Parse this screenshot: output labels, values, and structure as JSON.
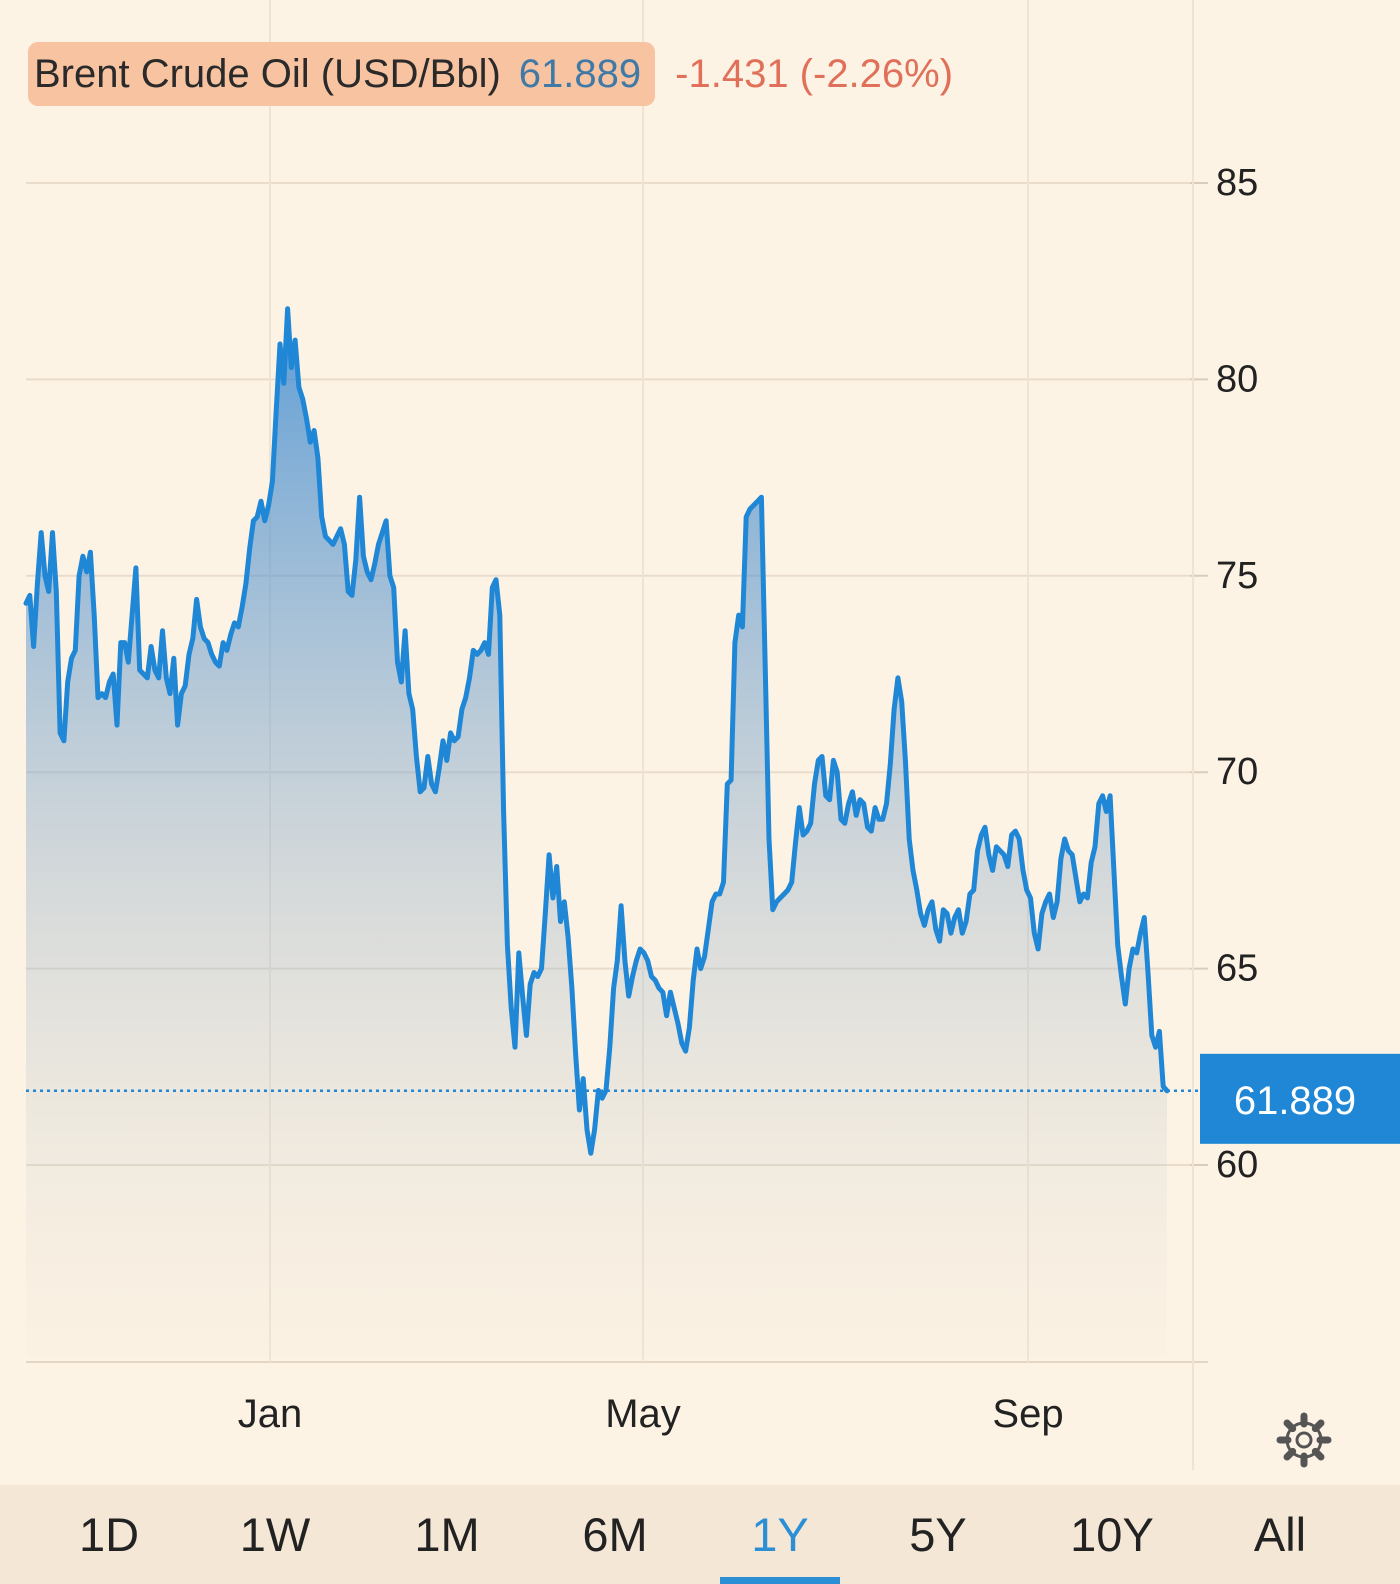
{
  "header": {
    "instrument": "Brent Crude Oil (USD/Bbl)",
    "price": "61.889",
    "change": "-1.431 (-2.26%)"
  },
  "tabs": [
    {
      "label": "1D",
      "active": false
    },
    {
      "label": "1W",
      "active": false
    },
    {
      "label": "1M",
      "active": false
    },
    {
      "label": "6M",
      "active": false
    },
    {
      "label": "1Y",
      "active": true
    },
    {
      "label": "5Y",
      "active": false
    },
    {
      "label": "10Y",
      "active": false
    },
    {
      "label": "All",
      "active": false
    }
  ],
  "icons": {
    "settings": "gear-icon"
  },
  "colors": {
    "background": "#fdf3e4",
    "line": "#1f87d6",
    "price_text": "#3f79a6",
    "change_negative": "#e0705a",
    "highlight": "#f8c3a0",
    "active_tab": "#2b8fd6"
  },
  "chart_data": {
    "type": "area",
    "x_tick_labels": [
      "Jan",
      "May",
      "Sep"
    ],
    "y_ticks": [
      60,
      65,
      70,
      75,
      80,
      85
    ],
    "ylim": [
      55,
      88
    ],
    "grid": true,
    "last_value_label": "61.889",
    "series": [
      {
        "values": [
          74.3,
          74.5,
          73.2,
          74.8,
          76.1,
          75.0,
          74.6,
          76.1,
          74.6,
          71.0,
          70.8,
          72.3,
          72.9,
          73.1,
          75.0,
          75.5,
          75.1,
          75.6,
          74.0,
          71.9,
          72.0,
          71.9,
          72.3,
          72.5,
          71.2,
          73.3,
          73.3,
          72.8,
          74.0,
          75.2,
          72.6,
          72.5,
          72.4,
          73.2,
          72.6,
          72.4,
          73.6,
          72.4,
          72.0,
          72.9,
          71.2,
          72.0,
          72.2,
          73.0,
          73.4,
          74.4,
          73.7,
          73.4,
          73.3,
          73.0,
          72.8,
          72.7,
          73.3,
          73.1,
          73.5,
          73.8,
          73.7,
          74.2,
          74.8,
          75.7,
          76.4,
          76.5,
          76.9,
          76.4,
          76.8,
          77.4,
          79.2,
          80.9,
          79.9,
          81.8,
          80.3,
          81.0,
          79.8,
          79.5,
          79.0,
          78.4,
          78.7,
          78.0,
          76.5,
          76.0,
          75.9,
          75.8,
          76.0,
          76.2,
          75.8,
          74.6,
          74.5,
          75.4,
          77.0,
          75.5,
          75.1,
          74.9,
          75.3,
          75.8,
          76.1,
          76.4,
          75.0,
          74.7,
          72.8,
          72.3,
          73.6,
          72.0,
          71.6,
          70.4,
          69.5,
          69.6,
          70.4,
          69.7,
          69.5,
          70.1,
          70.8,
          70.3,
          71.0,
          70.8,
          70.9,
          71.6,
          71.9,
          72.4,
          73.1,
          73.0,
          73.1,
          73.3,
          73.0,
          74.7,
          74.9,
          74.0,
          69.0,
          65.6,
          64.0,
          63.0,
          65.4,
          64.3,
          63.3,
          64.6,
          64.9,
          64.8,
          65.0,
          66.4,
          67.9,
          66.8,
          67.6,
          66.2,
          66.7,
          65.8,
          64.5,
          62.8,
          61.4,
          62.2,
          60.9,
          60.3,
          60.9,
          61.9,
          61.7,
          61.9,
          63.0,
          64.5,
          65.2,
          66.6,
          65.2,
          64.3,
          64.8,
          65.2,
          65.5,
          65.4,
          65.2,
          64.8,
          64.7,
          64.5,
          64.4,
          63.8,
          64.4,
          64.0,
          63.6,
          63.1,
          62.9,
          63.5,
          64.7,
          65.5,
          65.0,
          65.3,
          66.0,
          66.7,
          66.9,
          66.9,
          67.2,
          69.7,
          69.8,
          73.3,
          74.0,
          73.7,
          76.5,
          76.7,
          76.8,
          76.9,
          77.0,
          72.7,
          68.3,
          66.5,
          66.7,
          66.8,
          66.9,
          67.0,
          67.2,
          68.2,
          69.1,
          68.4,
          68.5,
          68.7,
          69.7,
          70.3,
          70.4,
          69.4,
          69.3,
          70.3,
          70.0,
          68.8,
          68.7,
          69.2,
          69.5,
          68.9,
          69.3,
          69.2,
          68.6,
          68.5,
          69.1,
          68.8,
          68.8,
          69.2,
          70.2,
          71.6,
          72.4,
          71.8,
          70.3,
          68.3,
          67.5,
          67.0,
          66.4,
          66.1,
          66.5,
          66.7,
          66.0,
          65.7,
          66.5,
          66.4,
          65.9,
          66.3,
          66.5,
          65.9,
          66.2,
          66.9,
          67.0,
          68.0,
          68.4,
          68.6,
          67.9,
          67.5,
          68.1,
          68.0,
          67.9,
          67.6,
          68.4,
          68.5,
          68.3,
          67.5,
          67.0,
          66.8,
          65.9,
          65.5,
          66.4,
          66.7,
          66.9,
          66.3,
          66.7,
          67.8,
          68.3,
          68.0,
          67.9,
          67.3,
          66.7,
          66.9,
          66.8,
          67.7,
          68.1,
          69.2,
          69.4,
          69.0,
          69.4,
          67.5,
          65.6,
          64.8,
          64.1,
          65.0,
          65.5,
          65.4,
          65.9,
          66.3,
          64.9,
          63.3,
          63.0,
          63.4,
          62.0,
          61.889
        ]
      }
    ]
  }
}
